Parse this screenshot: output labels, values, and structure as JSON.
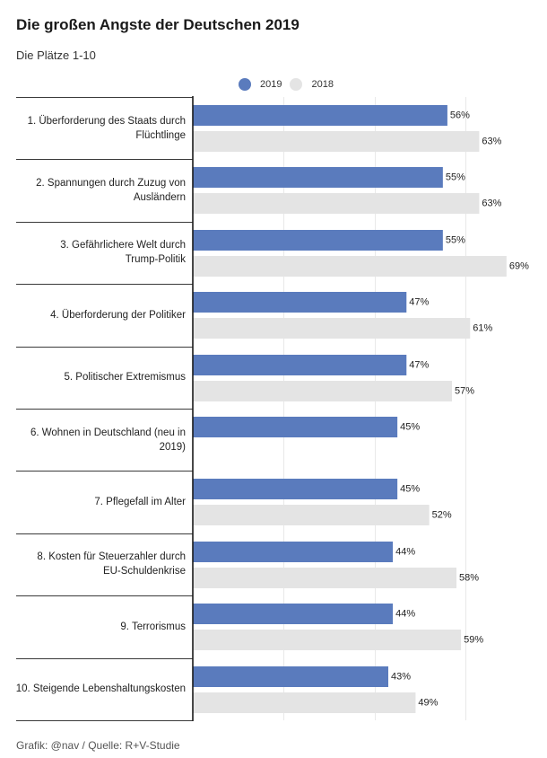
{
  "chart_data": {
    "type": "bar",
    "title": "Die großen Angste der Deutschen 2019",
    "subtitle": "Die Plätze 1-10",
    "source": "Grafik: @nav / Quelle: R+V-Studie",
    "categories": [
      "1. Überforderung des Staats durch Flüchtlinge",
      "2. Spannungen durch Zuzug von Ausländern",
      "3. Gefährlichere Welt durch Trump-Politik",
      "4. Überforderung der Politiker",
      "5. Politischer Extremismus",
      "6. Wohnen in Deutschland (neu in 2019)",
      "7. Pflegefall im Alter",
      "8. Kosten für Steuerzahler durch EU-Schuldenkrise",
      "9. Terrorismus",
      "10. Steigende Lebenshaltungskosten"
    ],
    "series": [
      {
        "name": "2019",
        "color": "#5a7bbd",
        "values": [
          56,
          55,
          55,
          47,
          47,
          45,
          45,
          44,
          44,
          43
        ]
      },
      {
        "name": "2018",
        "color": "#e4e4e4",
        "values": [
          63,
          63,
          69,
          61,
          57,
          null,
          52,
          58,
          59,
          49
        ]
      }
    ],
    "unit": "%",
    "xlim": [
      0,
      80
    ],
    "grid": true,
    "grid_step": 20,
    "legend": "top"
  }
}
